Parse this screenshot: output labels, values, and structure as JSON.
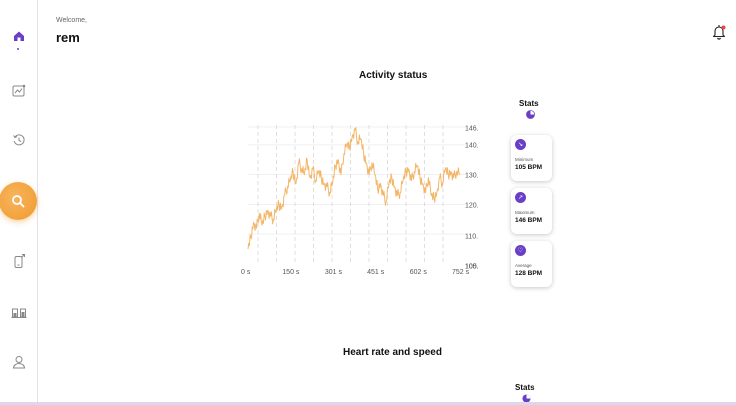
{
  "header": {
    "welcome": "Welcome,",
    "username": "rem"
  },
  "sidebar": {
    "items": [
      {
        "name": "home-icon",
        "active": true
      },
      {
        "name": "trend-chart-icon"
      },
      {
        "name": "history-icon"
      },
      {
        "name": "search-icon",
        "highlighted": true
      },
      {
        "name": "device-sync-icon"
      },
      {
        "name": "compare-icon"
      },
      {
        "name": "user-icon"
      }
    ]
  },
  "activity": {
    "title": "Activity status",
    "stats_title": "Stats",
    "stats": [
      {
        "label": "Minimum",
        "value": "105 BPM",
        "icon": "trend-down-icon"
      },
      {
        "label": "Maximum",
        "value": "146 BPM",
        "icon": "trend-up-icon"
      },
      {
        "label": "Average",
        "value": "128 BPM",
        "icon": "heart-icon"
      }
    ]
  },
  "heart_speed": {
    "title": "Heart rate and speed",
    "stats_title": "Stats"
  },
  "colors": {
    "accent": "#f2a23a",
    "line": "#f3b668",
    "purple": "#6a3fc6"
  },
  "chart_data": {
    "type": "line",
    "x_ticks": [
      "0 s",
      "150 s",
      "301 s",
      "451 s",
      "602 s",
      "752 s"
    ],
    "y_ticks": [
      "146.0 BPM",
      "140.0 BPM",
      "130.0 BPM",
      "120.0 BPM",
      "110.0 BPM",
      "100.0 BPM",
      "105.0 BPM"
    ],
    "xlim": [
      0,
      752
    ],
    "ylim": [
      100,
      146
    ],
    "x": [
      0,
      10,
      20,
      30,
      40,
      50,
      60,
      70,
      80,
      90,
      100,
      110,
      120,
      130,
      140,
      150,
      160,
      170,
      180,
      190,
      200,
      210,
      220,
      230,
      240,
      250,
      260,
      270,
      280,
      290,
      300,
      310,
      320,
      330,
      340,
      350,
      360,
      370,
      380,
      390,
      400,
      410,
      420,
      430,
      440,
      450,
      460,
      470,
      480,
      490,
      500,
      510,
      520,
      530,
      540,
      550,
      560,
      570,
      580,
      590,
      600,
      610,
      620,
      630,
      640,
      650,
      660,
      670,
      680,
      690,
      700,
      710,
      720,
      730,
      740,
      752
    ],
    "values": [
      105,
      109,
      114,
      112,
      117,
      113,
      116,
      118,
      116,
      115,
      118,
      120,
      119,
      123,
      126,
      128,
      131,
      127,
      134,
      132,
      130,
      135,
      129,
      132,
      128,
      131,
      129,
      127,
      126,
      124,
      127,
      133,
      135,
      130,
      137,
      140,
      139,
      143,
      145,
      141,
      142,
      137,
      134,
      130,
      134,
      130,
      125,
      127,
      123,
      121,
      127,
      129,
      126,
      123,
      124,
      128,
      131,
      132,
      128,
      131,
      133,
      129,
      127,
      124,
      129,
      123,
      122,
      124,
      129,
      127,
      132,
      130,
      131,
      129,
      131,
      130
    ]
  }
}
